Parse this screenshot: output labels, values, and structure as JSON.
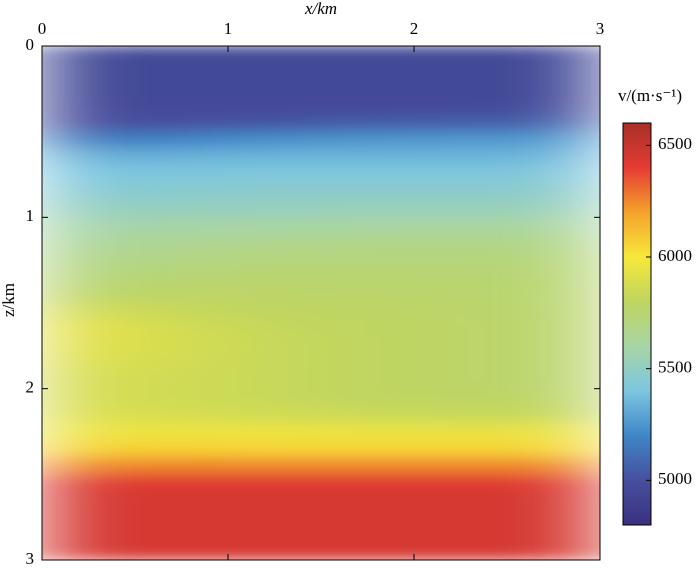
{
  "chart_data": {
    "type": "heatmap",
    "x_label": "x/km",
    "y_label": "z/km",
    "colorbar_label": "v/(m·s⁻¹)",
    "x": [
      0.25,
      0.75,
      1.25,
      1.75,
      2.25,
      2.75
    ],
    "y": [
      0.05,
      0.15,
      0.25,
      0.35,
      0.45,
      0.55,
      0.65,
      0.75,
      0.85,
      0.95,
      1.05,
      1.15,
      1.25,
      1.35,
      1.45,
      1.55,
      1.65,
      1.75,
      1.85,
      1.95,
      2.05,
      2.15,
      2.25,
      2.35,
      2.45,
      2.55,
      2.65,
      2.75,
      2.85,
      2.95
    ],
    "values": [
      [
        4950,
        4950,
        4950,
        4950,
        4950,
        4950
      ],
      [
        4950,
        4950,
        4950,
        4950,
        4950,
        4950
      ],
      [
        4950,
        4950,
        4950,
        4950,
        4950,
        4950
      ],
      [
        4960,
        4960,
        4960,
        4960,
        4960,
        4970
      ],
      [
        4990,
        5000,
        5020,
        5040,
        5050,
        5060
      ],
      [
        5150,
        5200,
        5230,
        5250,
        5260,
        5260
      ],
      [
        5330,
        5340,
        5350,
        5350,
        5350,
        5350
      ],
      [
        5400,
        5410,
        5420,
        5420,
        5420,
        5420
      ],
      [
        5450,
        5460,
        5470,
        5470,
        5470,
        5470
      ],
      [
        5510,
        5520,
        5520,
        5530,
        5530,
        5530
      ],
      [
        5580,
        5590,
        5600,
        5600,
        5610,
        5610
      ],
      [
        5630,
        5650,
        5670,
        5680,
        5680,
        5680
      ],
      [
        5680,
        5700,
        5720,
        5720,
        5720,
        5720
      ],
      [
        5720,
        5740,
        5750,
        5750,
        5750,
        5740
      ],
      [
        5780,
        5780,
        5780,
        5770,
        5760,
        5750
      ],
      [
        5870,
        5830,
        5800,
        5790,
        5770,
        5760
      ],
      [
        5930,
        5870,
        5820,
        5800,
        5780,
        5760
      ],
      [
        5920,
        5880,
        5830,
        5800,
        5780,
        5760
      ],
      [
        5900,
        5870,
        5830,
        5800,
        5780,
        5760
      ],
      [
        5880,
        5860,
        5830,
        5800,
        5780,
        5760
      ],
      [
        5880,
        5860,
        5830,
        5800,
        5790,
        5770
      ],
      [
        5900,
        5880,
        5860,
        5840,
        5830,
        5820
      ],
      [
        5960,
        5960,
        5960,
        5950,
        5950,
        5950
      ],
      [
        6060,
        6060,
        6050,
        6050,
        6050,
        6050
      ],
      [
        6250,
        6250,
        6250,
        6250,
        6250,
        6250
      ],
      [
        6420,
        6420,
        6420,
        6420,
        6420,
        6420
      ],
      [
        6450,
        6450,
        6450,
        6450,
        6450,
        6450
      ],
      [
        6450,
        6450,
        6450,
        6450,
        6450,
        6450
      ],
      [
        6450,
        6450,
        6450,
        6450,
        6450,
        6450
      ],
      [
        6450,
        6450,
        6450,
        6450,
        6450,
        6450
      ]
    ],
    "xlim": [
      0,
      3
    ],
    "xticks": [
      0,
      1,
      2,
      3
    ],
    "ylim": [
      3,
      0
    ],
    "yticks": [
      0,
      1,
      2,
      3
    ],
    "clim": [
      4800,
      6600
    ],
    "cticks": [
      5000,
      5500,
      6000,
      6500
    ],
    "colorscale": [
      "#3b2f80",
      "#46509e",
      "#3f86c7",
      "#7cc6e0",
      "#a8d5a5",
      "#bfd560",
      "#f7e83a",
      "#f4a22c",
      "#e53b34",
      "#a83028"
    ]
  }
}
